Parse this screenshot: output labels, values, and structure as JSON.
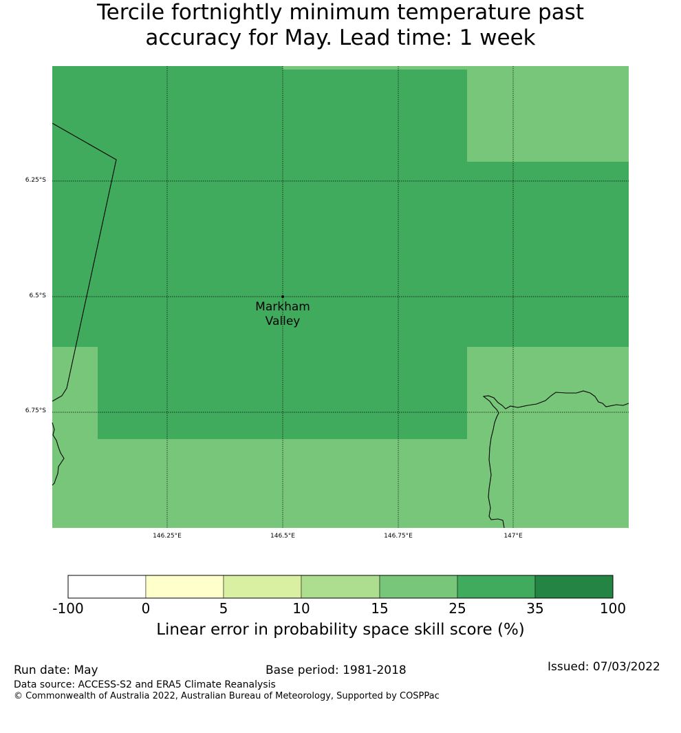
{
  "title_lines": [
    "Tercile fortnightly minimum temperature past",
    "accuracy for May. Lead time: 1 week"
  ],
  "map": {
    "lat_labels": [
      "6.25°S",
      "6.5°S",
      "6.75°S"
    ],
    "lon_labels": [
      "146.25°E",
      "146.5°E",
      "146.75°E",
      "147°E"
    ],
    "place": {
      "name_line1": "Markham",
      "name_line2": "Valley"
    },
    "grid_cells": [
      {
        "category": "25-35",
        "color": "#41ab5d",
        "region": "main-block"
      },
      {
        "category": "15-25",
        "color": "#78c679",
        "region": "north-east"
      },
      {
        "category": "15-25",
        "color": "#78c679",
        "region": "south-west"
      },
      {
        "category": "15-25",
        "color": "#78c679",
        "region": "south"
      },
      {
        "category": "15-25",
        "color": "#78c679",
        "region": "south-east"
      }
    ]
  },
  "colorbar": {
    "ticks": [
      "-100",
      "0",
      "5",
      "10",
      "15",
      "25",
      "35",
      "100"
    ],
    "colors": [
      "#ffffff",
      "#ffffcc",
      "#d9f0a3",
      "#addd8e",
      "#78c679",
      "#41ab5d",
      "#238443"
    ],
    "label": "Linear error in probability space skill score (%)"
  },
  "footer": {
    "run_date": "Run date: May",
    "base_period": "Base period: 1981-2018",
    "issued": "Issued: 07/03/2022",
    "data_source": "Data source: ACCESS-S2 and ERA5 Climate Reanalysis",
    "copyright": "© Commonwealth of Australia 2022, Australian Bureau of Meteorology, Supported by COSPPac"
  }
}
